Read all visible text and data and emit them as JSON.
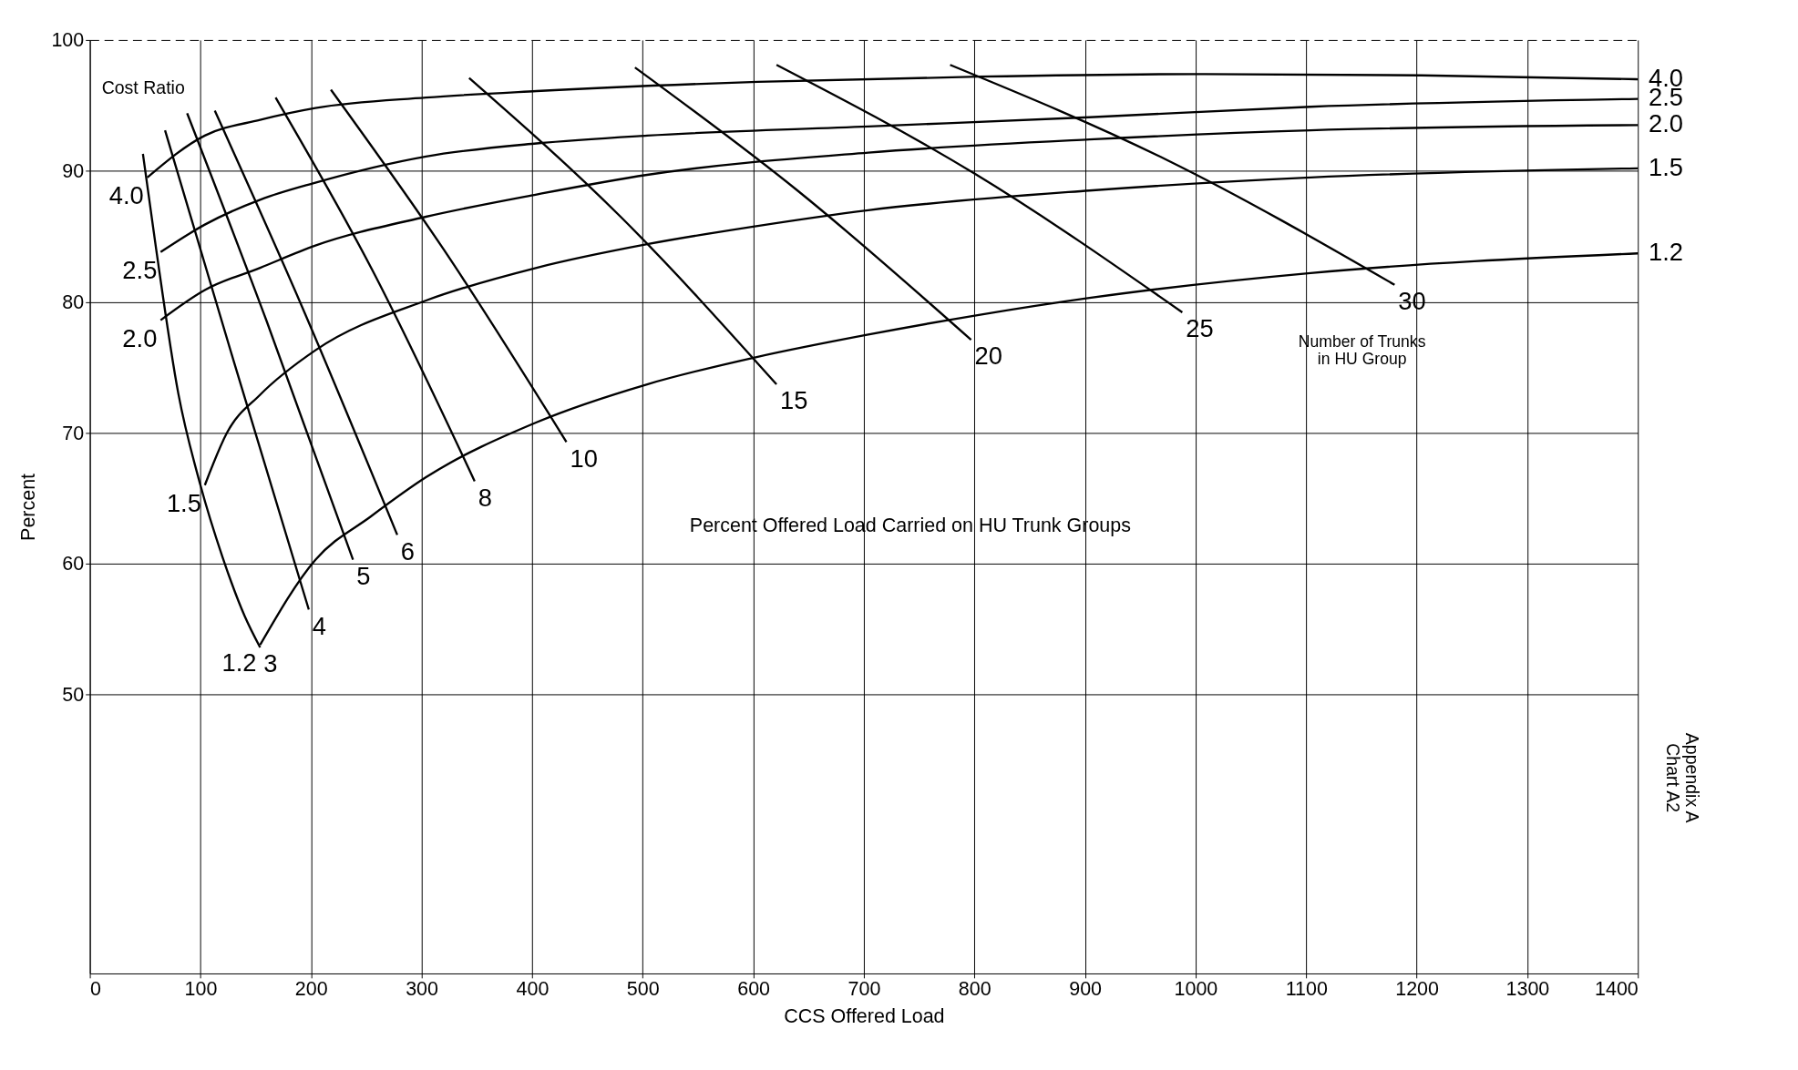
{
  "chart_data": {
    "type": "line",
    "title": "Percent Offered Load Carried on HU Trunk Groups",
    "xlabel": "CCS Offered Load",
    "ylabel": "Percent",
    "xlim": [
      0,
      1400
    ],
    "ylim": [
      28.7,
      100
    ],
    "xticks": [
      0,
      100,
      200,
      300,
      400,
      500,
      600,
      700,
      800,
      900,
      1000,
      1100,
      1200,
      1300,
      1400
    ],
    "yticks": [
      50,
      60,
      70,
      80,
      90,
      100
    ],
    "grid": true,
    "legend": false,
    "marker": "none",
    "line_style": "solid",
    "series": [
      {
        "name": "4.0",
        "color": "#000000",
        "x": [
          52,
          104,
          154,
          204,
          304,
          404,
          604,
          804,
          1004,
          1204,
          1400
        ],
        "values": [
          89.5,
          92.7,
          93.9,
          94.8,
          95.6,
          96.1,
          96.8,
          97.2,
          97.4,
          97.3,
          97.0
        ]
      },
      {
        "name": "2.5",
        "color": "#000000",
        "x": [
          64,
          104,
          154,
          204,
          304,
          404,
          504,
          704,
          904,
          1104,
          1400
        ],
        "values": [
          83.8,
          85.9,
          87.8,
          89.1,
          91.1,
          92.1,
          92.7,
          93.4,
          94.1,
          94.9,
          95.5
        ]
      },
      {
        "name": "2.0",
        "color": "#000000",
        "x": [
          64,
          104,
          154,
          204,
          304,
          404,
          504,
          704,
          904,
          1104,
          1400
        ],
        "values": [
          78.6,
          80.9,
          82.6,
          84.3,
          86.5,
          88.2,
          89.7,
          91.4,
          92.4,
          93.1,
          93.5
        ]
      },
      {
        "name": "1.5",
        "color": "#000000",
        "x": [
          104,
          124,
          154,
          204,
          304,
          404,
          504,
          604,
          704,
          904,
          1104,
          1400
        ],
        "values": [
          66.0,
          70.0,
          72.9,
          76.3,
          80.1,
          82.6,
          84.4,
          85.8,
          87.0,
          88.5,
          89.5,
          90.2
        ]
      },
      {
        "name": "1.2",
        "color": "#000000",
        "x": [
          154,
          204,
          254,
          304,
          404,
          504,
          604,
          704,
          804,
          904,
          1104,
          1400
        ],
        "values": [
          53.8,
          60.3,
          63.6,
          66.6,
          70.8,
          73.7,
          75.8,
          77.5,
          79.0,
          80.3,
          82.2,
          83.7
        ]
      },
      {
        "name": "3",
        "color": "#000000",
        "x": [
          48,
          60,
          80,
          100,
          120,
          140,
          154
        ],
        "values": [
          91.3,
          84,
          73,
          66,
          60.5,
          56,
          53.6
        ]
      },
      {
        "name": "4",
        "color": "#000000",
        "x": [
          68,
          130,
          198
        ],
        "values": [
          93.1,
          75.5,
          56.5
        ]
      },
      {
        "name": "5",
        "color": "#000000",
        "x": [
          88,
          160,
          238
        ],
        "values": [
          94.4,
          78.5,
          60.3
        ]
      },
      {
        "name": "6",
        "color": "#000000",
        "x": [
          113,
          190,
          278
        ],
        "values": [
          94.6,
          80,
          62.2
        ]
      },
      {
        "name": "8",
        "color": "#000000",
        "x": [
          168,
          255,
          348
        ],
        "values": [
          95.6,
          82.5,
          66.3
        ]
      },
      {
        "name": "10",
        "color": "#000000",
        "x": [
          218,
          320,
          431
        ],
        "values": [
          96.2,
          84,
          69.3
        ]
      },
      {
        "name": "15",
        "color": "#000000",
        "x": [
          343,
          480,
          621
        ],
        "values": [
          97.1,
          86.5,
          73.7
        ]
      },
      {
        "name": "20",
        "color": "#000000",
        "x": [
          493,
          640,
          797
        ],
        "values": [
          97.9,
          88.5,
          77.1
        ]
      },
      {
        "name": "25",
        "color": "#000000",
        "x": [
          621,
          800,
          988
        ],
        "values": [
          98.1,
          89.8,
          79.2
        ]
      },
      {
        "name": "30",
        "color": "#000000",
        "x": [
          778,
          975,
          1180
        ],
        "values": [
          98.1,
          90.8,
          81.3
        ]
      }
    ],
    "annotations": [
      "Cost Ratio",
      "Number of Trunks\nin HU Group",
      "Appendix A\nChart A2"
    ]
  }
}
